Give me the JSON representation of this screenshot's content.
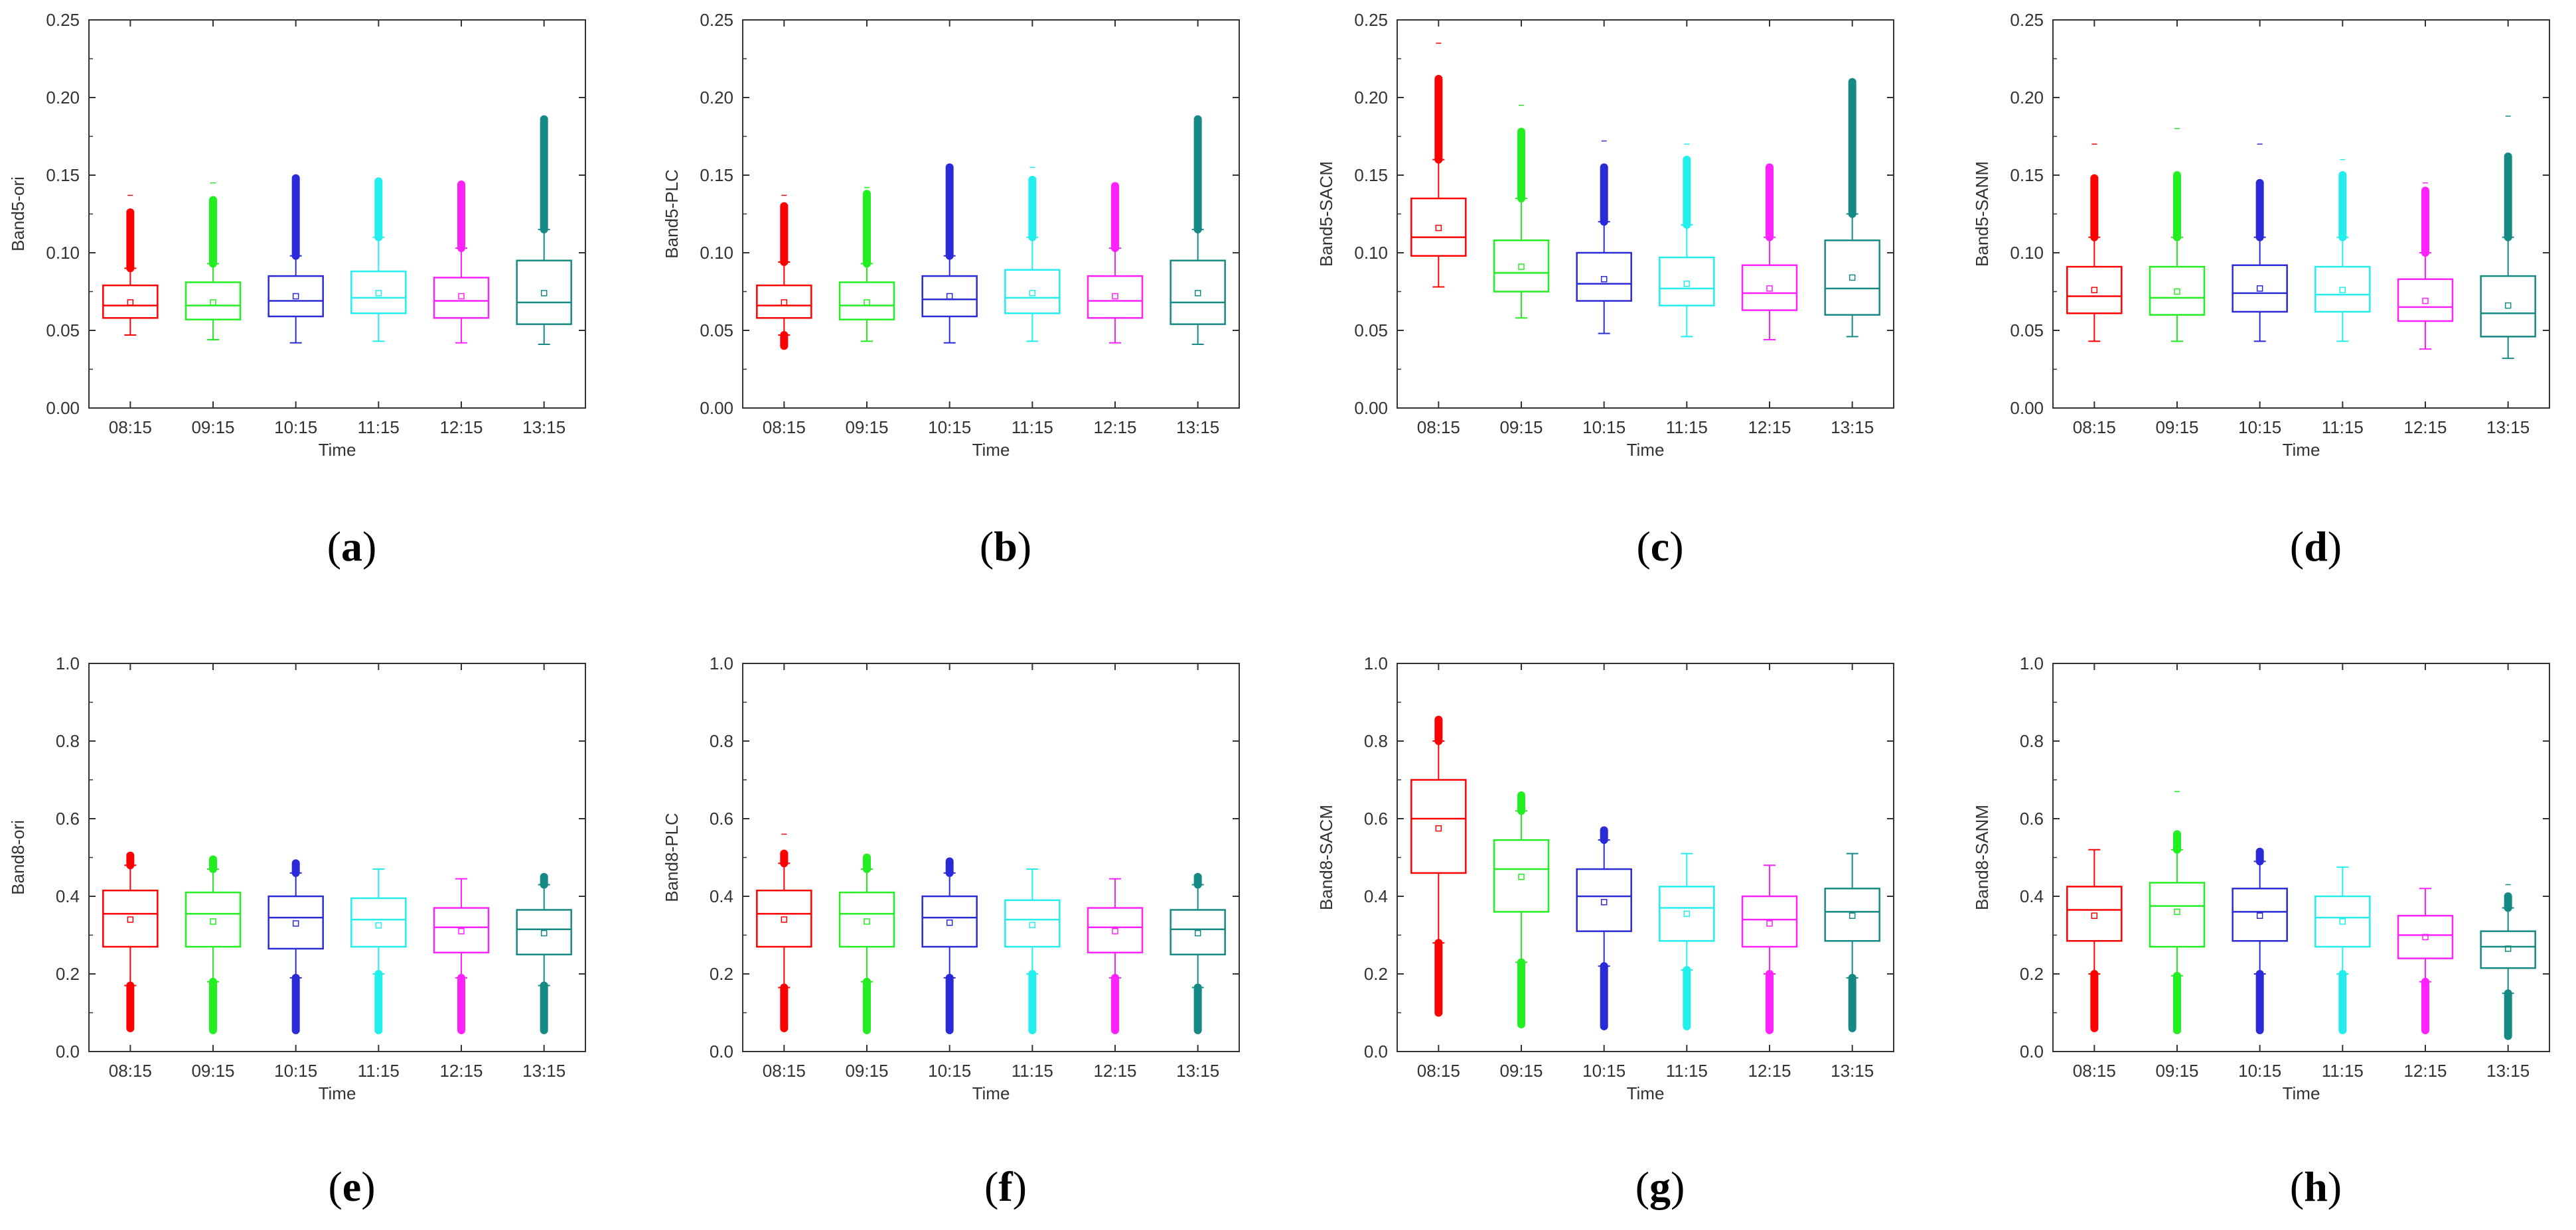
{
  "figure": {
    "colors": {
      "08:15": "#ff0000",
      "09:15": "#22ee22",
      "10:15": "#2a2ad8",
      "11:15": "#22eeee",
      "12:15": "#ff22ff",
      "13:15": "#158a85",
      "axis": "#333333"
    }
  },
  "chart_data": [
    {
      "id": "a",
      "panel_label": "a",
      "type": "box",
      "xlabel": "Time",
      "ylabel": "Band5-ori",
      "ylim": [
        0,
        0.25
      ],
      "yticks": [
        "0.00",
        "0.05",
        "0.10",
        "0.15",
        "0.20",
        "0.25"
      ],
      "categories": [
        "08:15",
        "09:15",
        "10:15",
        "11:15",
        "12:15",
        "13:15"
      ],
      "boxes": [
        {
          "q1": 0.058,
          "median": 0.066,
          "q3": 0.079,
          "mean": 0.068,
          "whisker_low": 0.047,
          "whisker_high": 0.09,
          "outlier_high": [
            0.09,
            0.126
          ],
          "outlier_low": null,
          "max": 0.137
        },
        {
          "q1": 0.057,
          "median": 0.066,
          "q3": 0.081,
          "mean": 0.068,
          "whisker_low": 0.044,
          "whisker_high": 0.093,
          "outlier_high": [
            0.093,
            0.134
          ],
          "outlier_low": null,
          "max": 0.145
        },
        {
          "q1": 0.059,
          "median": 0.069,
          "q3": 0.085,
          "mean": 0.072,
          "whisker_low": 0.042,
          "whisker_high": 0.098,
          "outlier_high": [
            0.098,
            0.148
          ],
          "outlier_low": null,
          "max": null
        },
        {
          "q1": 0.061,
          "median": 0.071,
          "q3": 0.088,
          "mean": 0.074,
          "whisker_low": 0.043,
          "whisker_high": 0.11,
          "outlier_high": [
            0.11,
            0.146
          ],
          "outlier_low": null,
          "max": null
        },
        {
          "q1": 0.058,
          "median": 0.069,
          "q3": 0.084,
          "mean": 0.072,
          "whisker_low": 0.042,
          "whisker_high": 0.103,
          "outlier_high": [
            0.103,
            0.144
          ],
          "outlier_low": null,
          "max": null
        },
        {
          "q1": 0.054,
          "median": 0.068,
          "q3": 0.095,
          "mean": 0.074,
          "whisker_low": 0.041,
          "whisker_high": 0.115,
          "outlier_high": [
            0.115,
            0.186
          ],
          "outlier_low": null,
          "max": null
        }
      ]
    },
    {
      "id": "b",
      "panel_label": "b",
      "type": "box",
      "xlabel": "Time",
      "ylabel": "Band5-PLC",
      "ylim": [
        0,
        0.25
      ],
      "yticks": [
        "0.00",
        "0.05",
        "0.10",
        "0.15",
        "0.20",
        "0.25"
      ],
      "categories": [
        "08:15",
        "09:15",
        "10:15",
        "11:15",
        "12:15",
        "13:15"
      ],
      "boxes": [
        {
          "q1": 0.058,
          "median": 0.066,
          "q3": 0.079,
          "mean": 0.068,
          "whisker_low": 0.047,
          "whisker_high": 0.094,
          "outlier_high": [
            0.094,
            0.13
          ],
          "outlier_low": [
            0.04,
            0.047
          ],
          "max": 0.137
        },
        {
          "q1": 0.057,
          "median": 0.066,
          "q3": 0.081,
          "mean": 0.068,
          "whisker_low": 0.043,
          "whisker_high": 0.093,
          "outlier_high": [
            0.093,
            0.138
          ],
          "outlier_low": null,
          "max": 0.142
        },
        {
          "q1": 0.059,
          "median": 0.07,
          "q3": 0.085,
          "mean": 0.072,
          "whisker_low": 0.042,
          "whisker_high": 0.098,
          "outlier_high": [
            0.098,
            0.155
          ],
          "outlier_low": null,
          "max": null
        },
        {
          "q1": 0.061,
          "median": 0.071,
          "q3": 0.089,
          "mean": 0.074,
          "whisker_low": 0.043,
          "whisker_high": 0.11,
          "outlier_high": [
            0.11,
            0.147
          ],
          "outlier_low": null,
          "max": 0.155
        },
        {
          "q1": 0.058,
          "median": 0.069,
          "q3": 0.085,
          "mean": 0.072,
          "whisker_low": 0.042,
          "whisker_high": 0.103,
          "outlier_high": [
            0.103,
            0.143
          ],
          "outlier_low": null,
          "max": null
        },
        {
          "q1": 0.054,
          "median": 0.068,
          "q3": 0.095,
          "mean": 0.074,
          "whisker_low": 0.041,
          "whisker_high": 0.115,
          "outlier_high": [
            0.115,
            0.186
          ],
          "outlier_low": null,
          "max": null
        }
      ]
    },
    {
      "id": "c",
      "panel_label": "c",
      "type": "box",
      "xlabel": "Time",
      "ylabel": "Band5-SACM",
      "ylim": [
        0,
        0.25
      ],
      "yticks": [
        "0.00",
        "0.05",
        "0.10",
        "0.15",
        "0.20",
        "0.25"
      ],
      "categories": [
        "08:15",
        "09:15",
        "10:15",
        "11:15",
        "12:15",
        "13:15"
      ],
      "boxes": [
        {
          "q1": 0.098,
          "median": 0.11,
          "q3": 0.135,
          "mean": 0.116,
          "whisker_low": 0.078,
          "whisker_high": 0.16,
          "outlier_high": [
            0.16,
            0.212
          ],
          "outlier_low": null,
          "max": 0.235
        },
        {
          "q1": 0.075,
          "median": 0.087,
          "q3": 0.108,
          "mean": 0.091,
          "whisker_low": 0.058,
          "whisker_high": 0.135,
          "outlier_high": [
            0.135,
            0.178
          ],
          "outlier_low": null,
          "max": 0.195
        },
        {
          "q1": 0.069,
          "median": 0.08,
          "q3": 0.1,
          "mean": 0.083,
          "whisker_low": 0.048,
          "whisker_high": 0.12,
          "outlier_high": [
            0.12,
            0.155
          ],
          "outlier_low": null,
          "max": 0.172
        },
        {
          "q1": 0.066,
          "median": 0.077,
          "q3": 0.097,
          "mean": 0.08,
          "whisker_low": 0.046,
          "whisker_high": 0.118,
          "outlier_high": [
            0.118,
            0.16
          ],
          "outlier_low": null,
          "max": 0.17
        },
        {
          "q1": 0.063,
          "median": 0.074,
          "q3": 0.092,
          "mean": 0.077,
          "whisker_low": 0.044,
          "whisker_high": 0.11,
          "outlier_high": [
            0.11,
            0.155
          ],
          "outlier_low": null,
          "max": null
        },
        {
          "q1": 0.06,
          "median": 0.077,
          "q3": 0.108,
          "mean": 0.084,
          "whisker_low": 0.046,
          "whisker_high": 0.125,
          "outlier_high": [
            0.125,
            0.21
          ],
          "outlier_low": null,
          "max": null
        }
      ]
    },
    {
      "id": "d",
      "panel_label": "d",
      "type": "box",
      "xlabel": "Time",
      "ylabel": "Band5-SANM",
      "ylim": [
        0,
        0.25
      ],
      "yticks": [
        "0.00",
        "0.05",
        "0.10",
        "0.15",
        "0.20",
        "0.25"
      ],
      "categories": [
        "08:15",
        "09:15",
        "10:15",
        "11:15",
        "12:15",
        "13:15"
      ],
      "boxes": [
        {
          "q1": 0.061,
          "median": 0.072,
          "q3": 0.091,
          "mean": 0.076,
          "whisker_low": 0.043,
          "whisker_high": 0.11,
          "outlier_high": [
            0.11,
            0.148
          ],
          "outlier_low": null,
          "max": 0.17
        },
        {
          "q1": 0.06,
          "median": 0.071,
          "q3": 0.091,
          "mean": 0.075,
          "whisker_low": 0.043,
          "whisker_high": 0.11,
          "outlier_high": [
            0.11,
            0.15
          ],
          "outlier_low": null,
          "max": 0.18
        },
        {
          "q1": 0.062,
          "median": 0.074,
          "q3": 0.092,
          "mean": 0.077,
          "whisker_low": 0.043,
          "whisker_high": 0.11,
          "outlier_high": [
            0.11,
            0.145
          ],
          "outlier_low": null,
          "max": 0.17
        },
        {
          "q1": 0.062,
          "median": 0.073,
          "q3": 0.091,
          "mean": 0.076,
          "whisker_low": 0.043,
          "whisker_high": 0.11,
          "outlier_high": [
            0.11,
            0.15
          ],
          "outlier_low": null,
          "max": 0.16
        },
        {
          "q1": 0.056,
          "median": 0.065,
          "q3": 0.083,
          "mean": 0.069,
          "whisker_low": 0.038,
          "whisker_high": 0.1,
          "outlier_high": [
            0.1,
            0.14
          ],
          "outlier_low": null,
          "max": 0.145
        },
        {
          "q1": 0.046,
          "median": 0.061,
          "q3": 0.085,
          "mean": 0.066,
          "whisker_low": 0.032,
          "whisker_high": 0.11,
          "outlier_high": [
            0.11,
            0.162
          ],
          "outlier_low": null,
          "max": 0.188
        }
      ]
    },
    {
      "id": "e",
      "panel_label": "e",
      "type": "box",
      "xlabel": "Time",
      "ylabel": "Band8-ori",
      "ylim": [
        0,
        1.0
      ],
      "yticks": [
        "0.0",
        "0.2",
        "0.4",
        "0.6",
        "0.8",
        "1.0"
      ],
      "categories": [
        "08:15",
        "09:15",
        "10:15",
        "11:15",
        "12:15",
        "13:15"
      ],
      "boxes": [
        {
          "q1": 0.27,
          "median": 0.355,
          "q3": 0.415,
          "mean": 0.34,
          "whisker_low": 0.17,
          "whisker_high": 0.48,
          "outlier_high": [
            0.48,
            0.505
          ],
          "outlier_low": [
            0.06,
            0.17
          ],
          "max": null
        },
        {
          "q1": 0.27,
          "median": 0.355,
          "q3": 0.41,
          "mean": 0.335,
          "whisker_low": 0.18,
          "whisker_high": 0.47,
          "outlier_high": [
            0.47,
            0.495
          ],
          "outlier_low": [
            0.055,
            0.18
          ],
          "max": null
        },
        {
          "q1": 0.265,
          "median": 0.345,
          "q3": 0.4,
          "mean": 0.33,
          "whisker_low": 0.19,
          "whisker_high": 0.46,
          "outlier_high": [
            0.46,
            0.485
          ],
          "outlier_low": [
            0.055,
            0.19
          ],
          "max": null
        },
        {
          "q1": 0.27,
          "median": 0.34,
          "q3": 0.395,
          "mean": 0.325,
          "whisker_low": 0.2,
          "whisker_high": 0.47,
          "outlier_high": null,
          "outlier_low": [
            0.055,
            0.2
          ],
          "max": null
        },
        {
          "q1": 0.255,
          "median": 0.32,
          "q3": 0.37,
          "mean": 0.31,
          "whisker_low": 0.19,
          "whisker_high": 0.445,
          "outlier_high": null,
          "outlier_low": [
            0.055,
            0.19
          ],
          "max": null
        },
        {
          "q1": 0.25,
          "median": 0.315,
          "q3": 0.365,
          "mean": 0.305,
          "whisker_low": 0.17,
          "whisker_high": 0.43,
          "outlier_high": [
            0.43,
            0.45
          ],
          "outlier_low": [
            0.055,
            0.17
          ],
          "max": null
        }
      ]
    },
    {
      "id": "f",
      "panel_label": "f",
      "type": "box",
      "xlabel": "Time",
      "ylabel": "Band8-PLC",
      "ylim": [
        0,
        1.0
      ],
      "yticks": [
        "0.0",
        "0.2",
        "0.4",
        "0.6",
        "0.8",
        "1.0"
      ],
      "categories": [
        "08:15",
        "09:15",
        "10:15",
        "11:15",
        "12:15",
        "13:15"
      ],
      "boxes": [
        {
          "q1": 0.27,
          "median": 0.355,
          "q3": 0.415,
          "mean": 0.34,
          "whisker_low": 0.165,
          "whisker_high": 0.485,
          "outlier_high": [
            0.485,
            0.51
          ],
          "outlier_low": [
            0.06,
            0.165
          ],
          "max": 0.56
        },
        {
          "q1": 0.27,
          "median": 0.355,
          "q3": 0.41,
          "mean": 0.335,
          "whisker_low": 0.18,
          "whisker_high": 0.47,
          "outlier_high": [
            0.47,
            0.5
          ],
          "outlier_low": [
            0.055,
            0.18
          ],
          "max": null
        },
        {
          "q1": 0.27,
          "median": 0.345,
          "q3": 0.4,
          "mean": 0.332,
          "whisker_low": 0.19,
          "whisker_high": 0.46,
          "outlier_high": [
            0.46,
            0.49
          ],
          "outlier_low": [
            0.055,
            0.19
          ],
          "max": null
        },
        {
          "q1": 0.27,
          "median": 0.34,
          "q3": 0.39,
          "mean": 0.326,
          "whisker_low": 0.2,
          "whisker_high": 0.47,
          "outlier_high": null,
          "outlier_low": [
            0.055,
            0.2
          ],
          "max": null
        },
        {
          "q1": 0.255,
          "median": 0.32,
          "q3": 0.37,
          "mean": 0.31,
          "whisker_low": 0.19,
          "whisker_high": 0.445,
          "outlier_high": null,
          "outlier_low": [
            0.055,
            0.19
          ],
          "max": null
        },
        {
          "q1": 0.25,
          "median": 0.315,
          "q3": 0.365,
          "mean": 0.305,
          "whisker_low": 0.165,
          "whisker_high": 0.43,
          "outlier_high": [
            0.43,
            0.45
          ],
          "outlier_low": [
            0.055,
            0.165
          ],
          "max": null
        }
      ]
    },
    {
      "id": "g",
      "panel_label": "g",
      "type": "box",
      "xlabel": "Time",
      "ylabel": "Band8-SACM",
      "ylim": [
        0,
        1.0
      ],
      "yticks": [
        "0.0",
        "0.2",
        "0.4",
        "0.6",
        "0.8",
        "1.0"
      ],
      "categories": [
        "08:15",
        "09:15",
        "10:15",
        "11:15",
        "12:15",
        "13:15"
      ],
      "boxes": [
        {
          "q1": 0.46,
          "median": 0.6,
          "q3": 0.7,
          "mean": 0.575,
          "whisker_low": 0.28,
          "whisker_high": 0.8,
          "outlier_high": [
            0.8,
            0.855
          ],
          "outlier_low": [
            0.1,
            0.28
          ],
          "max": null
        },
        {
          "q1": 0.36,
          "median": 0.47,
          "q3": 0.545,
          "mean": 0.45,
          "whisker_low": 0.23,
          "whisker_high": 0.62,
          "outlier_high": [
            0.62,
            0.66
          ],
          "outlier_low": [
            0.07,
            0.23
          ],
          "max": null
        },
        {
          "q1": 0.31,
          "median": 0.4,
          "q3": 0.47,
          "mean": 0.385,
          "whisker_low": 0.22,
          "whisker_high": 0.545,
          "outlier_high": [
            0.545,
            0.57
          ],
          "outlier_low": [
            0.065,
            0.22
          ],
          "max": null
        },
        {
          "q1": 0.285,
          "median": 0.37,
          "q3": 0.425,
          "mean": 0.355,
          "whisker_low": 0.21,
          "whisker_high": 0.51,
          "outlier_high": null,
          "outlier_low": [
            0.065,
            0.21
          ],
          "max": null
        },
        {
          "q1": 0.27,
          "median": 0.34,
          "q3": 0.4,
          "mean": 0.33,
          "whisker_low": 0.2,
          "whisker_high": 0.48,
          "outlier_high": null,
          "outlier_low": [
            0.055,
            0.2
          ],
          "max": null
        },
        {
          "q1": 0.285,
          "median": 0.36,
          "q3": 0.42,
          "mean": 0.35,
          "whisker_low": 0.19,
          "whisker_high": 0.51,
          "outlier_high": null,
          "outlier_low": [
            0.06,
            0.19
          ],
          "max": null
        }
      ]
    },
    {
      "id": "h",
      "panel_label": "h",
      "type": "box",
      "xlabel": "Time",
      "ylabel": "Band8-SANM",
      "ylim": [
        0,
        1.0
      ],
      "yticks": [
        "0.0",
        "0.2",
        "0.4",
        "0.6",
        "0.8",
        "1.0"
      ],
      "categories": [
        "08:15",
        "09:15",
        "10:15",
        "11:15",
        "12:15",
        "13:15"
      ],
      "boxes": [
        {
          "q1": 0.285,
          "median": 0.365,
          "q3": 0.425,
          "mean": 0.35,
          "whisker_low": 0.2,
          "whisker_high": 0.52,
          "outlier_high": null,
          "outlier_low": [
            0.06,
            0.2
          ],
          "max": null
        },
        {
          "q1": 0.27,
          "median": 0.375,
          "q3": 0.435,
          "mean": 0.36,
          "whisker_low": 0.195,
          "whisker_high": 0.52,
          "outlier_high": [
            0.52,
            0.56
          ],
          "outlier_low": [
            0.055,
            0.195
          ],
          "max": 0.67
        },
        {
          "q1": 0.285,
          "median": 0.36,
          "q3": 0.42,
          "mean": 0.35,
          "whisker_low": 0.2,
          "whisker_high": 0.49,
          "outlier_high": [
            0.49,
            0.515
          ],
          "outlier_low": [
            0.055,
            0.2
          ],
          "max": null
        },
        {
          "q1": 0.27,
          "median": 0.345,
          "q3": 0.4,
          "mean": 0.335,
          "whisker_low": 0.2,
          "whisker_high": 0.475,
          "outlier_high": null,
          "outlier_low": [
            0.055,
            0.2
          ],
          "max": null
        },
        {
          "q1": 0.24,
          "median": 0.3,
          "q3": 0.35,
          "mean": 0.295,
          "whisker_low": 0.18,
          "whisker_high": 0.42,
          "outlier_high": null,
          "outlier_low": [
            0.055,
            0.18
          ],
          "max": null
        },
        {
          "q1": 0.215,
          "median": 0.27,
          "q3": 0.31,
          "mean": 0.265,
          "whisker_low": 0.15,
          "whisker_high": 0.37,
          "outlier_high": [
            0.37,
            0.4
          ],
          "outlier_low": [
            0.04,
            0.15
          ],
          "max": 0.43
        }
      ]
    }
  ]
}
